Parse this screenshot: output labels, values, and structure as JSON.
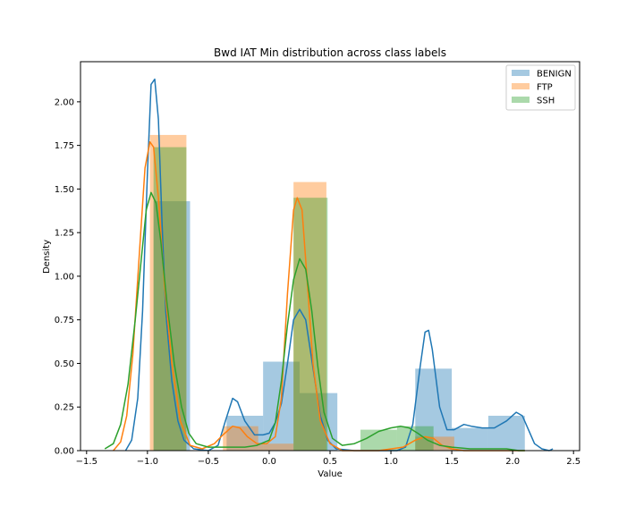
{
  "chart_data": {
    "type": "histogram+kde",
    "title": "Bwd IAT Min distribution across class labels",
    "xlabel": "Value",
    "ylabel": "Density",
    "xlim": [
      -1.55,
      2.55
    ],
    "ylim": [
      0,
      2.23
    ],
    "xticks": [
      -1.5,
      -1.0,
      -0.5,
      0.0,
      0.5,
      1.0,
      1.5,
      2.0,
      2.5
    ],
    "xtick_labels": [
      "−1.5",
      "−1.0",
      "−0.5",
      "0.0",
      "0.5",
      "1.0",
      "1.5",
      "2.0",
      "2.5"
    ],
    "yticks": [
      0.0,
      0.25,
      0.5,
      0.75,
      1.0,
      1.25,
      1.5,
      1.75,
      2.0
    ],
    "ytick_labels": [
      "0.00",
      "0.25",
      "0.50",
      "0.75",
      "1.00",
      "1.25",
      "1.50",
      "1.75",
      "2.00"
    ],
    "legend_position": "top-right",
    "series": [
      {
        "name": "BENIGN",
        "color": "#1f77b4",
        "hist": [
          {
            "x0": -0.95,
            "x1": -0.65,
            "density": 1.43
          },
          {
            "x0": -0.35,
            "x1": -0.05,
            "density": 0.2
          },
          {
            "x0": -0.05,
            "x1": 0.25,
            "density": 0.51
          },
          {
            "x0": 0.25,
            "x1": 0.56,
            "density": 0.33
          },
          {
            "x0": 1.2,
            "x1": 1.5,
            "density": 0.47
          },
          {
            "x0": 1.5,
            "x1": 1.8,
            "density": 0.13
          },
          {
            "x0": 1.8,
            "x1": 2.1,
            "density": 0.2
          }
        ],
        "kde": [
          [
            -1.18,
            0.0
          ],
          [
            -1.13,
            0.06
          ],
          [
            -1.08,
            0.3
          ],
          [
            -1.04,
            0.8
          ],
          [
            -1.0,
            1.6
          ],
          [
            -0.97,
            2.1
          ],
          [
            -0.94,
            2.13
          ],
          [
            -0.91,
            1.9
          ],
          [
            -0.88,
            1.3
          ],
          [
            -0.85,
            0.8
          ],
          [
            -0.8,
            0.4
          ],
          [
            -0.75,
            0.17
          ],
          [
            -0.7,
            0.06
          ],
          [
            -0.62,
            0.01
          ],
          [
            -0.5,
            0.0
          ],
          [
            -0.42,
            0.03
          ],
          [
            -0.36,
            0.17
          ],
          [
            -0.3,
            0.3
          ],
          [
            -0.26,
            0.28
          ],
          [
            -0.2,
            0.17
          ],
          [
            -0.12,
            0.09
          ],
          [
            -0.05,
            0.09
          ],
          [
            0.0,
            0.1
          ],
          [
            0.05,
            0.16
          ],
          [
            0.1,
            0.27
          ],
          [
            0.15,
            0.5
          ],
          [
            0.2,
            0.75
          ],
          [
            0.25,
            0.81
          ],
          [
            0.3,
            0.75
          ],
          [
            0.35,
            0.52
          ],
          [
            0.42,
            0.2
          ],
          [
            0.48,
            0.06
          ],
          [
            0.55,
            0.01
          ],
          [
            0.7,
            0.0
          ],
          [
            0.9,
            0.0
          ],
          [
            1.05,
            0.0
          ],
          [
            1.12,
            0.02
          ],
          [
            1.18,
            0.15
          ],
          [
            1.24,
            0.48
          ],
          [
            1.28,
            0.68
          ],
          [
            1.31,
            0.69
          ],
          [
            1.34,
            0.58
          ],
          [
            1.4,
            0.25
          ],
          [
            1.46,
            0.12
          ],
          [
            1.52,
            0.12
          ],
          [
            1.6,
            0.15
          ],
          [
            1.66,
            0.14
          ],
          [
            1.75,
            0.13
          ],
          [
            1.85,
            0.13
          ],
          [
            1.95,
            0.17
          ],
          [
            2.03,
            0.22
          ],
          [
            2.08,
            0.2
          ],
          [
            2.13,
            0.12
          ],
          [
            2.18,
            0.04
          ],
          [
            2.24,
            0.01
          ],
          [
            2.3,
            0.0
          ],
          [
            2.33,
            0.01
          ]
        ]
      },
      {
        "name": "FTP",
        "color": "#ff7f0e",
        "hist": [
          {
            "x0": -0.98,
            "x1": -0.68,
            "density": 1.81
          },
          {
            "x0": -0.38,
            "x1": -0.09,
            "density": 0.14
          },
          {
            "x0": -0.09,
            "x1": 0.2,
            "density": 0.04
          },
          {
            "x0": 0.2,
            "x1": 0.47,
            "density": 1.54
          },
          {
            "x0": 1.2,
            "x1": 1.52,
            "density": 0.08
          }
        ],
        "kde": [
          [
            -1.28,
            0.0
          ],
          [
            -1.22,
            0.05
          ],
          [
            -1.17,
            0.2
          ],
          [
            -1.12,
            0.55
          ],
          [
            -1.06,
            1.2
          ],
          [
            -1.02,
            1.62
          ],
          [
            -0.98,
            1.77
          ],
          [
            -0.95,
            1.74
          ],
          [
            -0.91,
            1.45
          ],
          [
            -0.86,
            0.95
          ],
          [
            -0.8,
            0.5
          ],
          [
            -0.73,
            0.17
          ],
          [
            -0.65,
            0.03
          ],
          [
            -0.55,
            0.01
          ],
          [
            -0.45,
            0.04
          ],
          [
            -0.38,
            0.09
          ],
          [
            -0.3,
            0.14
          ],
          [
            -0.24,
            0.13
          ],
          [
            -0.18,
            0.08
          ],
          [
            -0.1,
            0.04
          ],
          [
            -0.02,
            0.04
          ],
          [
            0.05,
            0.08
          ],
          [
            0.1,
            0.3
          ],
          [
            0.15,
            0.9
          ],
          [
            0.2,
            1.38
          ],
          [
            0.23,
            1.45
          ],
          [
            0.27,
            1.38
          ],
          [
            0.31,
            1.0
          ],
          [
            0.36,
            0.5
          ],
          [
            0.42,
            0.17
          ],
          [
            0.5,
            0.04
          ],
          [
            0.6,
            0.0
          ],
          [
            0.9,
            0.0
          ],
          [
            1.1,
            0.02
          ],
          [
            1.2,
            0.06
          ],
          [
            1.28,
            0.08
          ],
          [
            1.35,
            0.07
          ],
          [
            1.42,
            0.03
          ],
          [
            1.5,
            0.01
          ],
          [
            1.6,
            0.0
          ],
          [
            2.1,
            0.0
          ]
        ]
      },
      {
        "name": "SSH",
        "color": "#2ca02c",
        "hist": [
          {
            "x0": -0.95,
            "x1": -0.68,
            "density": 1.74
          },
          {
            "x0": -0.68,
            "x1": -0.38,
            "density": 0.0
          },
          {
            "x0": -0.35,
            "x1": -0.05,
            "density": 0.0
          },
          {
            "x0": 0.2,
            "x1": 0.48,
            "density": 1.45
          },
          {
            "x0": 0.75,
            "x1": 1.05,
            "density": 0.12
          },
          {
            "x0": 1.05,
            "x1": 1.35,
            "density": 0.14
          }
        ],
        "kde": [
          [
            -1.35,
            0.01
          ],
          [
            -1.28,
            0.04
          ],
          [
            -1.22,
            0.15
          ],
          [
            -1.16,
            0.38
          ],
          [
            -1.1,
            0.75
          ],
          [
            -1.05,
            1.1
          ],
          [
            -1.01,
            1.38
          ],
          [
            -0.97,
            1.48
          ],
          [
            -0.93,
            1.42
          ],
          [
            -0.89,
            1.2
          ],
          [
            -0.84,
            0.85
          ],
          [
            -0.78,
            0.5
          ],
          [
            -0.72,
            0.25
          ],
          [
            -0.66,
            0.1
          ],
          [
            -0.6,
            0.04
          ],
          [
            -0.5,
            0.02
          ],
          [
            -0.4,
            0.02
          ],
          [
            -0.3,
            0.02
          ],
          [
            -0.2,
            0.02
          ],
          [
            -0.1,
            0.03
          ],
          [
            0.0,
            0.06
          ],
          [
            0.05,
            0.16
          ],
          [
            0.1,
            0.4
          ],
          [
            0.15,
            0.72
          ],
          [
            0.2,
            0.98
          ],
          [
            0.25,
            1.1
          ],
          [
            0.3,
            1.04
          ],
          [
            0.35,
            0.8
          ],
          [
            0.4,
            0.48
          ],
          [
            0.45,
            0.22
          ],
          [
            0.52,
            0.07
          ],
          [
            0.6,
            0.03
          ],
          [
            0.7,
            0.04
          ],
          [
            0.8,
            0.07
          ],
          [
            0.9,
            0.11
          ],
          [
            1.0,
            0.13
          ],
          [
            1.08,
            0.14
          ],
          [
            1.15,
            0.13
          ],
          [
            1.22,
            0.1
          ],
          [
            1.3,
            0.06
          ],
          [
            1.4,
            0.03
          ],
          [
            1.5,
            0.02
          ],
          [
            1.65,
            0.01
          ],
          [
            1.8,
            0.01
          ],
          [
            1.95,
            0.01
          ],
          [
            2.05,
            0.0
          ],
          [
            2.1,
            0.0
          ]
        ]
      }
    ]
  }
}
